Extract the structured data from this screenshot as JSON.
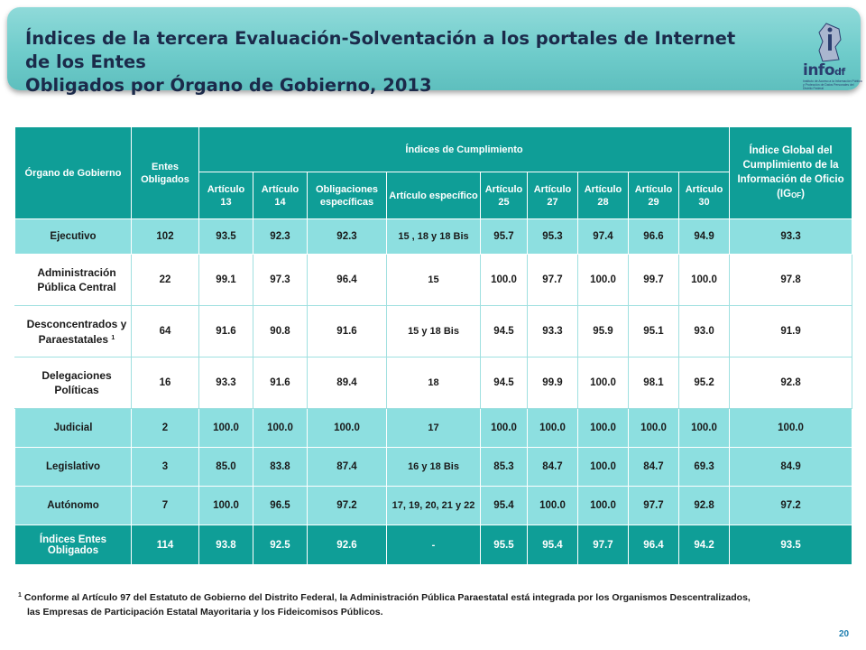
{
  "title": {
    "line1": "Índices de la tercera Evaluación-Solventación a los portales de Internet de los Entes",
    "line2": "Obligados por Órgano de Gobierno, 2013"
  },
  "logo": {
    "name": "infodf-logo",
    "text": "info",
    "suffix": "df",
    "subtitle": "Instituto de Acceso a la Información Pública y Protección de Datos Personales del Distrito Federal"
  },
  "table": {
    "headers": {
      "organo": "Órgano de Gobierno",
      "entes": "Entes Obligados",
      "indices": "Índices de Cumplimiento",
      "global_line": "Índice Global del Cumplimiento de la Información de Oficio",
      "global_abbr": "(IG",
      "global_sub": "OF",
      "global_close": ")",
      "columns": [
        "Artículo 13",
        "Artículo 14",
        "Obligaciones específicas",
        "Artículo específico",
        "Artículo 25",
        "Artículo 27",
        "Artículo 28",
        "Artículo 29",
        "Artículo 30"
      ]
    },
    "rows": [
      {
        "name": "Ejecutivo",
        "entes": "102",
        "a13": "93.5",
        "a14": "92.3",
        "oblig": "92.3",
        "art": "15 , 18 y 18 Bis",
        "a25": "95.7",
        "a27": "95.3",
        "a28": "97.4",
        "a29": "96.6",
        "a30": "94.9",
        "global": "93.3"
      },
      {
        "name": "Administración Pública Central",
        "entes": "22",
        "a13": "99.1",
        "a14": "97.3",
        "oblig": "96.4",
        "art": "15",
        "a25": "100.0",
        "a27": "97.7",
        "a28": "100.0",
        "a29": "99.7",
        "a30": "100.0",
        "global": "97.8"
      },
      {
        "name": "Desconcentrados y Paraestatales",
        "sup": "1",
        "entes": "64",
        "a13": "91.6",
        "a14": "90.8",
        "oblig": "91.6",
        "art": "15 y 18 Bis",
        "a25": "94.5",
        "a27": "93.3",
        "a28": "95.9",
        "a29": "95.1",
        "a30": "93.0",
        "global": "91.9"
      },
      {
        "name": "Delegaciones Políticas",
        "entes": "16",
        "a13": "93.3",
        "a14": "91.6",
        "oblig": "89.4",
        "art": "18",
        "a25": "94.5",
        "a27": "99.9",
        "a28": "100.0",
        "a29": "98.1",
        "a30": "95.2",
        "global": "92.8"
      },
      {
        "name": "Judicial",
        "entes": "2",
        "a13": "100.0",
        "a14": "100.0",
        "oblig": "100.0",
        "art": "17",
        "a25": "100.0",
        "a27": "100.0",
        "a28": "100.0",
        "a29": "100.0",
        "a30": "100.0",
        "global": "100.0"
      },
      {
        "name": "Legislativo",
        "entes": "3",
        "a13": "85.0",
        "a14": "83.8",
        "oblig": "87.4",
        "art": "16 y 18 Bis",
        "a25": "85.3",
        "a27": "84.7",
        "a28": "100.0",
        "a29": "84.7",
        "a30": "69.3",
        "global": "84.9"
      },
      {
        "name": "Autónomo",
        "entes": "7",
        "a13": "100.0",
        "a14": "96.5",
        "oblig": "97.2",
        "art": "17, 19, 20, 21 y 22",
        "a25": "95.4",
        "a27": "100.0",
        "a28": "100.0",
        "a29": "97.7",
        "a30": "92.8",
        "global": "97.2"
      },
      {
        "name": "Índices Entes Obligados",
        "entes": "114",
        "a13": "93.8",
        "a14": "92.5",
        "oblig": "92.6",
        "art": "-",
        "a25": "95.5",
        "a27": "95.4",
        "a28": "97.7",
        "a29": "96.4",
        "a30": "94.2",
        "global": "93.5"
      }
    ]
  },
  "footnote": {
    "marker": "1",
    "line1": "Conforme al Artículo 97 del Estatuto de Gobierno del Distrito Federal, la Administración Pública Paraestatal está integrada por los Organismos Descentralizados,",
    "line2": "las Empresas de Participación Estatal Mayoritaria y los Fideicomisos Públicos."
  },
  "page_number": "20",
  "colors": {
    "header_teal": "#0f9e97",
    "row_cyan": "#8ddfe0",
    "title_bg": "#7dd3d2",
    "title_text": "#1b2a4a"
  }
}
